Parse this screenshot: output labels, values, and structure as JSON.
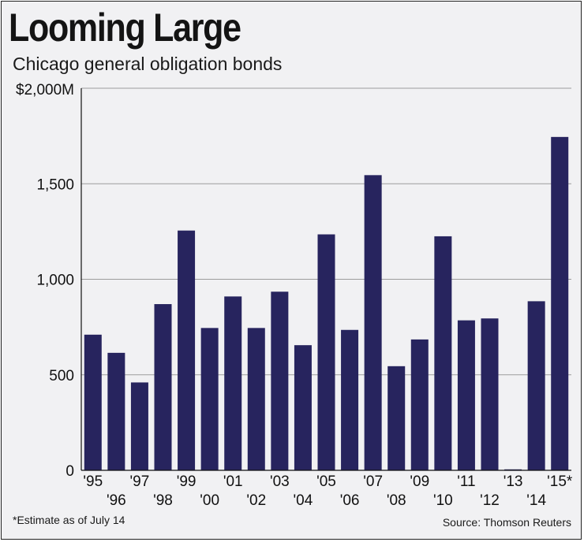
{
  "chart_data": {
    "type": "bar",
    "title": "Looming Large",
    "subtitle": "Chicago general obligation bonds",
    "categories": [
      "'95",
      "'96",
      "'97",
      "'98",
      "'99",
      "'00",
      "'01",
      "'02",
      "'03",
      "'04",
      "'05",
      "'06",
      "'07",
      "'08",
      "'09",
      "'10",
      "'11",
      "'12",
      "'13",
      "'14",
      "'15*"
    ],
    "values": [
      710,
      615,
      460,
      870,
      1255,
      745,
      910,
      745,
      935,
      655,
      1235,
      735,
      1545,
      545,
      685,
      1225,
      785,
      795,
      5,
      885,
      1745
    ],
    "ylim": [
      0,
      2000
    ],
    "yticks": [
      0,
      500,
      1000,
      1500,
      2000
    ],
    "ytick_labels": [
      "0",
      "500",
      "1,000",
      "1,500",
      "$2,000M"
    ],
    "xlabel": "",
    "ylabel": "",
    "grid": true,
    "bar_color": "#27245e",
    "grid_color": "#9c9c9c"
  },
  "footnote": "*Estimate as of July 14",
  "source": "Source: Thomson Reuters"
}
